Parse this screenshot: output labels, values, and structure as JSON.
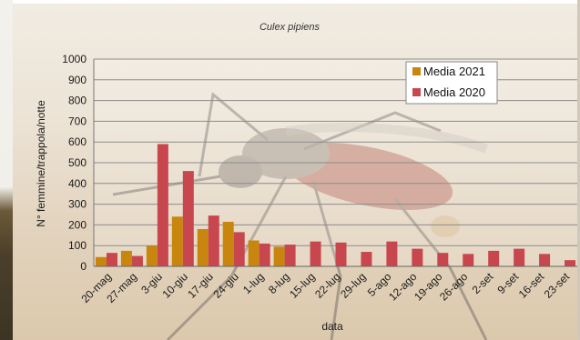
{
  "chart_data": {
    "type": "bar",
    "title": "Culex pipiens",
    "xlabel": "data",
    "ylabel": "N° femmine/trappola/notte",
    "ylim": [
      0,
      1000
    ],
    "yticks": [
      0,
      100,
      200,
      300,
      400,
      500,
      600,
      700,
      800,
      900,
      1000
    ],
    "grid": true,
    "legend_position": "top-right",
    "categories": [
      "20-mag",
      "27-mag",
      "3-giu",
      "10-giu",
      "17-giu",
      "24-giu",
      "1-lug",
      "8-lug",
      "15-lug",
      "22-lug",
      "29-lug",
      "5-ago",
      "12-ago",
      "19-ago",
      "26-ago",
      "2-set",
      "9-set",
      "16-set",
      "23-set"
    ],
    "series": [
      {
        "name": "Media 2021",
        "color": "#c9860f",
        "values": [
          45,
          75,
          100,
          240,
          180,
          215,
          125,
          95,
          null,
          null,
          null,
          null,
          null,
          null,
          null,
          null,
          null,
          null,
          null
        ]
      },
      {
        "name": "Media 2020",
        "color": "#c8474e",
        "values": [
          65,
          50,
          590,
          460,
          245,
          165,
          110,
          105,
          120,
          115,
          70,
          120,
          85,
          65,
          60,
          75,
          85,
          60,
          30
        ]
      }
    ]
  }
}
